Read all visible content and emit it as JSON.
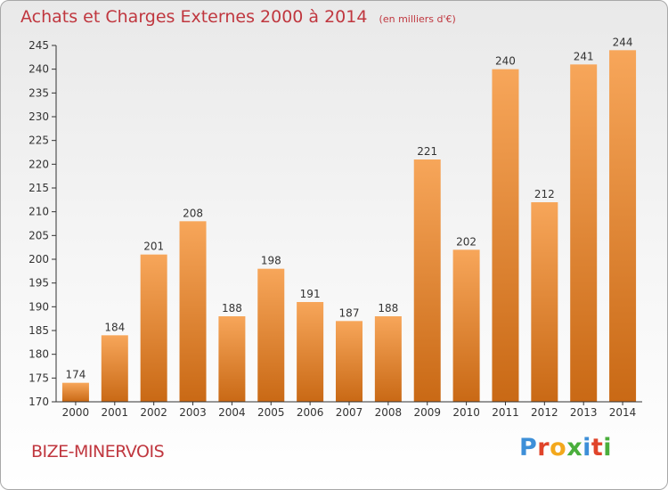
{
  "header": {
    "title": "Achats et Charges Externes 2000 à 2014",
    "subtitle": "(en milliers d'€)"
  },
  "footer": {
    "commune": "BIZE-MINERVOIS",
    "brand_letters": [
      "P",
      "r",
      "o",
      "x",
      "i",
      "t",
      "i"
    ],
    "brand_colors": [
      "#3d8fd8",
      "#e0442a",
      "#f3a81c",
      "#4aae3c",
      "#3d8fd8",
      "#e0442a",
      "#4aae3c"
    ]
  },
  "chart_data": {
    "type": "bar",
    "categories": [
      "2000",
      "2001",
      "2002",
      "2003",
      "2004",
      "2005",
      "2006",
      "2007",
      "2008",
      "2009",
      "2010",
      "2011",
      "2012",
      "2013",
      "2014"
    ],
    "values": [
      174,
      184,
      201,
      208,
      188,
      198,
      191,
      187,
      188,
      221,
      202,
      240,
      212,
      241,
      244
    ],
    "ylim": [
      170,
      245
    ],
    "yticks": [
      170,
      175,
      180,
      185,
      190,
      195,
      200,
      205,
      210,
      215,
      220,
      225,
      230,
      235,
      240,
      245
    ],
    "grid": false,
    "legend": "none",
    "colors": {
      "bar_top": "#f7a65a",
      "bar_bottom": "#c96915",
      "axis": "#333333",
      "text": "#333333",
      "title": "#c0373f"
    }
  }
}
